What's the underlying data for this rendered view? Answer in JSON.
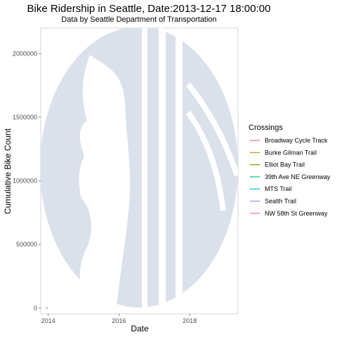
{
  "chart_data": {
    "type": "line",
    "title": "Bike Ridership in Seattle, Date:2013-12-17 18:00:00",
    "subtitle": "Data by Seattle Department of Transportation",
    "xlabel": "Date",
    "ylabel": "Cumulative Bike Count",
    "x_ticks": [
      "2014",
      "2016",
      "2018"
    ],
    "x_tick_dates": [
      "2014-01-01",
      "2016-01-01",
      "2018-01-01"
    ],
    "xlim": [
      "2013-10-15",
      "2019-05-15"
    ],
    "y_ticks": [
      "0",
      "500000",
      "1000000",
      "1500000",
      "2000000"
    ],
    "y_tick_values": [
      0,
      500000,
      1000000,
      1500000,
      2000000
    ],
    "ylim": [
      -45000,
      2200000
    ],
    "grid": false,
    "background_watermark": "seattle-logo",
    "legend": {
      "title": "Crossings",
      "position": "right"
    },
    "series": [
      {
        "name": "Broadway Cycle Track",
        "color": "#F8766D",
        "x": [
          "2013-12-17"
        ],
        "y": [
          0
        ]
      },
      {
        "name": "Burke Gilman Trail",
        "color": "#C49A00",
        "x": [
          "2013-12-17"
        ],
        "y": [
          0
        ]
      },
      {
        "name": "Elliot Bay Trail",
        "color": "#53B400",
        "x": [
          "2013-12-17"
        ],
        "y": [
          0
        ]
      },
      {
        "name": "39th Ave NE Greenway",
        "color": "#00C094",
        "x": [
          "2013-12-17"
        ],
        "y": [
          0
        ]
      },
      {
        "name": "MTS Trail",
        "color": "#00B6EB",
        "x": [
          "2013-12-17"
        ],
        "y": [
          0
        ]
      },
      {
        "name": "Sealth Trail",
        "color": "#A58AFF",
        "x": [
          "2013-12-17"
        ],
        "y": [
          0
        ]
      },
      {
        "name": "NW 58th St Greenway",
        "color": "#FB61D7",
        "x": [
          "2013-12-17"
        ],
        "y": [
          0
        ]
      }
    ]
  }
}
